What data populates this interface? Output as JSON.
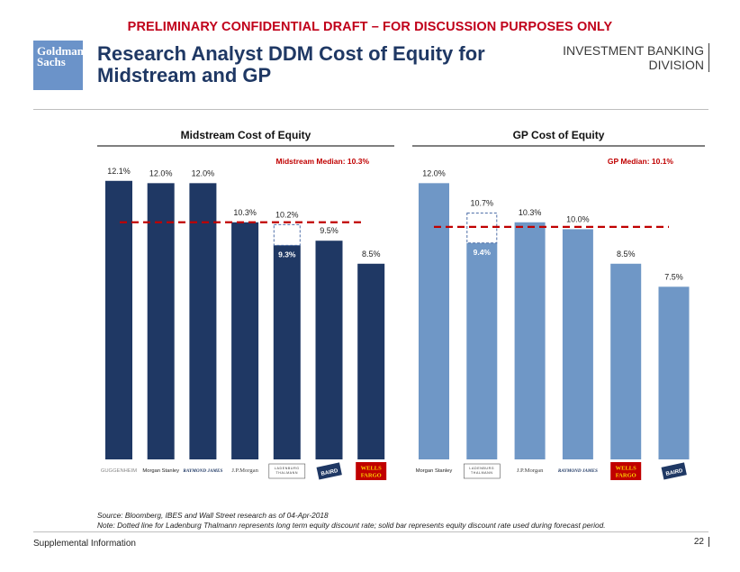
{
  "banner": "PRELIMINARY CONFIDENTIAL DRAFT – FOR DISCUSSION PURPOSES ONLY",
  "logo": {
    "line1": "Goldman",
    "line2": "Sachs"
  },
  "title": "Research Analyst DDM Cost of Equity for Midstream and GP",
  "division": {
    "line1": "INVESTMENT BANKING",
    "line2": "DIVISION"
  },
  "colors": {
    "midstream_bar": "#1f3864",
    "gp_bar": "#6f97c6",
    "median_line": "#c00000",
    "brand": "#6b93c9"
  },
  "chart_data": [
    {
      "type": "bar",
      "title": "Midstream Cost of Equity",
      "median_label": "Midstream Median: 10.3%",
      "median": 10.3,
      "categories": [
        "GUGGENHEIM",
        "Morgan Stanley",
        "RAYMOND JAMES",
        "J.P.Morgan",
        "LADENBURG THALMANN",
        "BAIRD",
        "WELLS FARGO"
      ],
      "values": [
        12.1,
        12.0,
        12.0,
        10.3,
        9.3,
        9.5,
        8.5
      ],
      "labels": [
        "12.1%",
        "12.0%",
        "12.0%",
        "10.3%",
        "9.3%",
        "9.5%",
        "8.5%"
      ],
      "dotted": {
        "index": 4,
        "value": 10.2,
        "label": "10.2%"
      },
      "ylim": [
        0,
        13.5
      ]
    },
    {
      "type": "bar",
      "title": "GP Cost of Equity",
      "median_label": "GP Median: 10.1%",
      "median": 10.1,
      "categories": [
        "Morgan Stanley",
        "LADENBURG THALMANN",
        "J.P.Morgan",
        "RAYMOND JAMES",
        "WELLS FARGO",
        "BAIRD"
      ],
      "values": [
        12.0,
        9.4,
        10.3,
        10.0,
        8.5,
        7.5
      ],
      "labels": [
        "12.0%",
        "9.4%",
        "10.3%",
        "10.0%",
        "8.5%",
        "7.5%"
      ],
      "dotted": {
        "index": 1,
        "value": 10.7,
        "label": "10.7%"
      },
      "ylim": [
        0,
        13.5
      ]
    }
  ],
  "source": {
    "line1": "Source:  Bloomberg, IBES and Wall Street research as of  04-Apr-2018",
    "line2": "Note: Dotted line for  Ladenburg Thalmann represents long term equity discount rate; solid bar represents equity discount rate used during forecast period."
  },
  "footer": {
    "text": "Supplemental Information",
    "page": "22"
  }
}
